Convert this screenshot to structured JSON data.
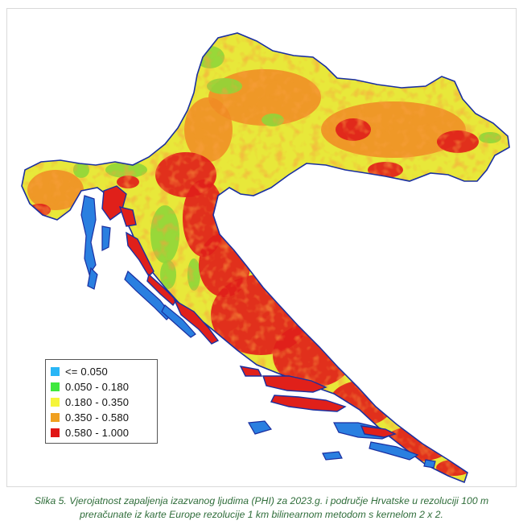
{
  "map": {
    "legend": {
      "items": [
        {
          "label": "<= 0.050",
          "color": "#29b6f6"
        },
        {
          "label": "0.050 - 0.180",
          "color": "#3ee83e"
        },
        {
          "label": "0.180 - 0.350",
          "color": "#f5f53a"
        },
        {
          "label": "0.350 - 0.580",
          "color": "#f0a020"
        },
        {
          "label": "0.580 - 1.000",
          "color": "#e01616"
        }
      ]
    },
    "colors": {
      "outline": "#1a2fa0",
      "water_low": "#2a7fe0",
      "class_green": "#8fd63a",
      "class_yellow": "#e8e83a",
      "class_orange": "#f08a24",
      "class_red": "#e0201a"
    }
  },
  "caption": {
    "line1": "Slika 5. Vjerojatnost zapaljenja izazvanog ljudima (PHI) za 2023.g. i područje Hrvatske u rezoluciji 100 m",
    "line2": "preračunate iz karte Europe rezolucije 1 km bilinearnom metodom s kernelom 2 x 2."
  }
}
